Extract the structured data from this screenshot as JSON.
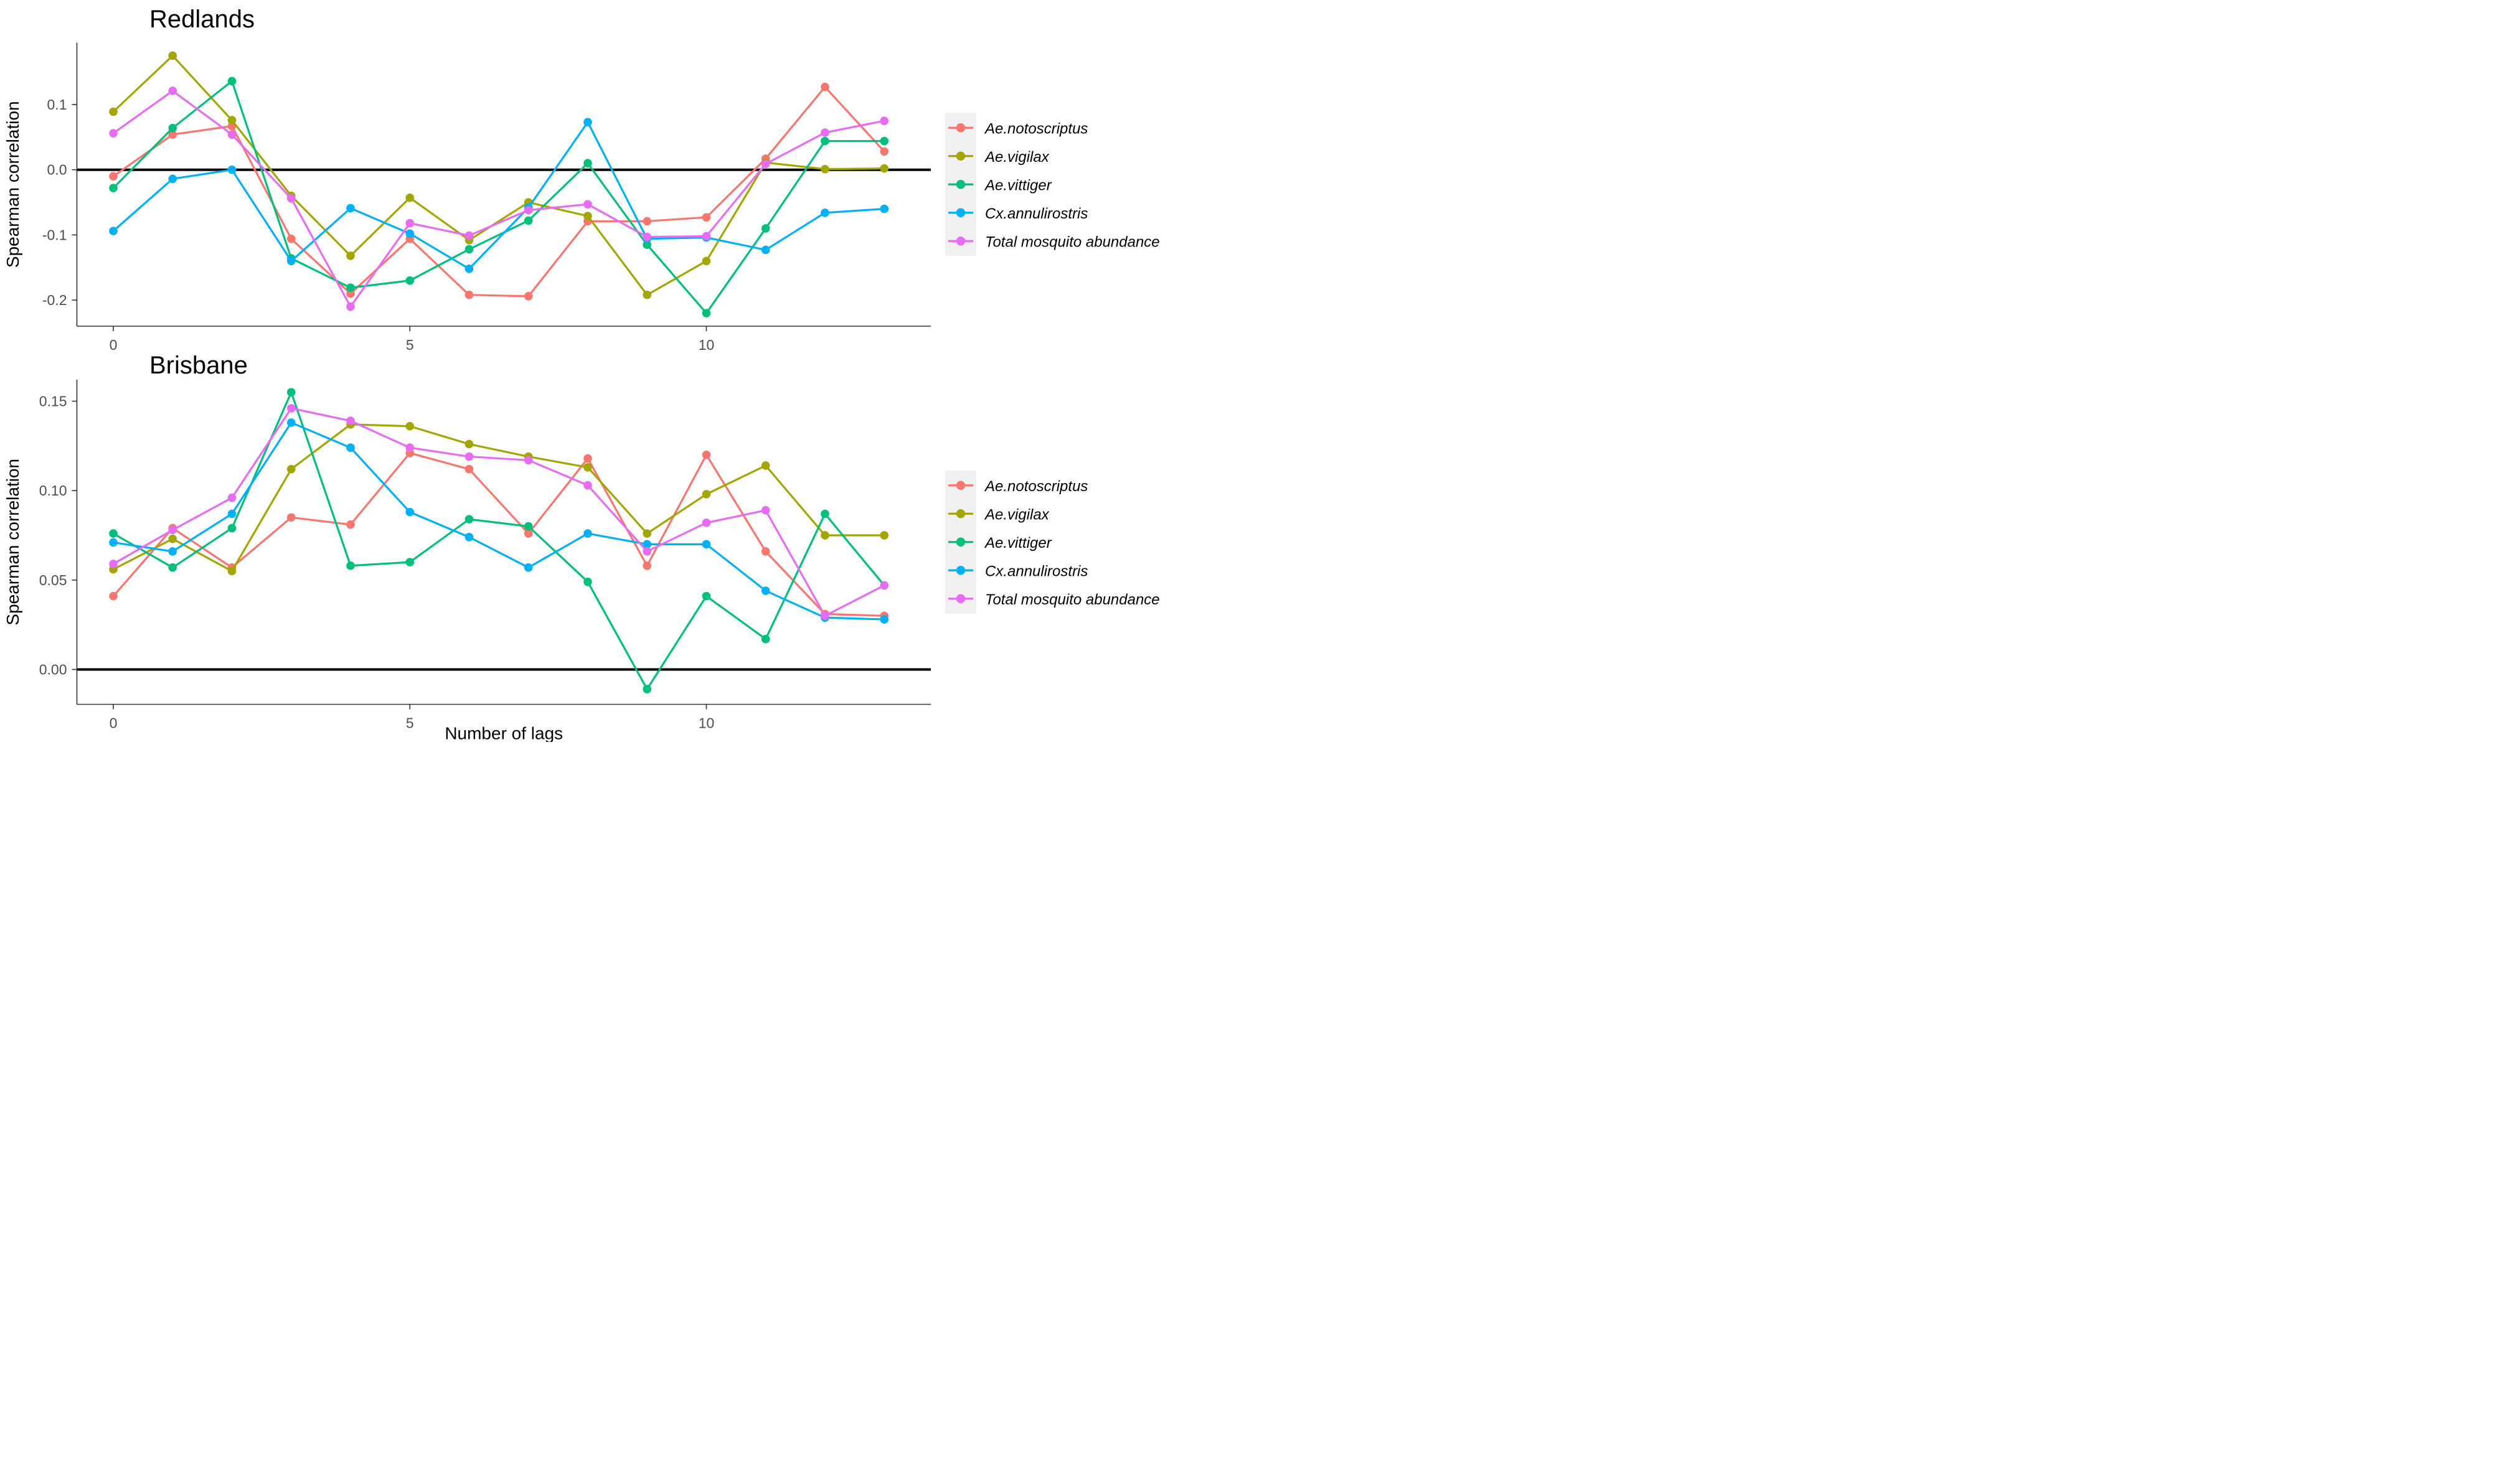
{
  "figure": {
    "ylabel": "Spearman correlation",
    "xlabel": "Number of lags",
    "legend_labels": [
      "Ae.notoscriptus",
      "Ae.vigilax",
      "Ae.vittiger",
      "Cx.annulirostris",
      "Total mosquito abundance"
    ],
    "series_colors": {
      "Ae.notoscriptus": "#F8766D",
      "Ae.vigilax": "#A3A500",
      "Ae.vittiger": "#00BF7D",
      "Cx.annulirostris": "#00B0F6",
      "Total mosquito abundance": "#E76BF3"
    },
    "axis_text_color": "#4d4d4d",
    "axis_line_color": "#333333",
    "zero_line_color": "#000000",
    "legend_key_fill": "#F0F0F0"
  },
  "chart_data": [
    {
      "type": "line",
      "title": "Redlands",
      "xlabel": "",
      "ylabel": "Spearman correlation",
      "x": [
        0,
        1,
        2,
        3,
        4,
        5,
        6,
        7,
        8,
        9,
        10,
        11,
        12,
        13
      ],
      "xticks": [
        0,
        5,
        10
      ],
      "xtick_labels": [
        "0",
        "5",
        "10"
      ],
      "yticks": [
        0.1,
        0.0,
        -0.1,
        -0.2
      ],
      "ytick_labels": [
        "0.1",
        "0.0",
        "-0.1",
        "-0.2"
      ],
      "ylim": [
        -0.24,
        0.195
      ],
      "hline": 0,
      "grid": "off",
      "legend_position": "right",
      "series": [
        {
          "name": "Ae.notoscriptus",
          "color": "#F8766D",
          "values": [
            -0.01,
            0.054,
            0.067,
            -0.106,
            -0.19,
            -0.106,
            -0.192,
            -0.194,
            -0.079,
            -0.079,
            -0.073,
            0.017,
            0.127,
            0.028
          ]
        },
        {
          "name": "Ae.vigilax",
          "color": "#A3A500",
          "values": [
            0.089,
            0.175,
            0.076,
            -0.04,
            -0.132,
            -0.043,
            -0.108,
            -0.05,
            -0.071,
            -0.192,
            -0.14,
            0.011,
            0.001,
            0.002
          ]
        },
        {
          "name": "Ae.vittiger",
          "color": "#00BF7D",
          "values": [
            -0.028,
            0.064,
            0.136,
            -0.136,
            -0.181,
            -0.17,
            -0.122,
            -0.078,
            0.01,
            -0.115,
            -0.22,
            -0.09,
            0.044,
            0.044
          ]
        },
        {
          "name": "Cx.annulirostris",
          "color": "#00B0F6",
          "values": [
            -0.094,
            -0.014,
            0.0,
            -0.14,
            -0.059,
            -0.098,
            -0.152,
            -0.058,
            0.073,
            -0.106,
            -0.104,
            -0.123,
            -0.066,
            -0.06
          ]
        },
        {
          "name": "Total mosquito abundance",
          "color": "#E76BF3",
          "values": [
            0.056,
            0.121,
            0.054,
            -0.044,
            -0.21,
            -0.082,
            -0.101,
            -0.062,
            -0.053,
            -0.103,
            -0.102,
            0.009,
            0.057,
            0.075
          ]
        }
      ]
    },
    {
      "type": "line",
      "title": "Brisbane",
      "xlabel": "Number of lags",
      "ylabel": "Spearman correlation",
      "x": [
        0,
        1,
        2,
        3,
        4,
        5,
        6,
        7,
        8,
        9,
        10,
        11,
        12,
        13
      ],
      "xticks": [
        0,
        5,
        10
      ],
      "xtick_labels": [
        "0",
        "5",
        "10"
      ],
      "yticks": [
        0.15,
        0.1,
        0.05,
        0.0
      ],
      "ytick_labels": [
        "0.15",
        "0.10",
        "0.05",
        "0.00"
      ],
      "ylim": [
        -0.0195,
        0.162
      ],
      "hline": 0,
      "grid": "off",
      "legend_position": "right",
      "series": [
        {
          "name": "Ae.notoscriptus",
          "color": "#F8766D",
          "values": [
            0.041,
            0.079,
            0.057,
            0.085,
            0.081,
            0.121,
            0.112,
            0.076,
            0.118,
            0.058,
            0.12,
            0.066,
            0.031,
            0.03
          ]
        },
        {
          "name": "Ae.vigilax",
          "color": "#A3A500",
          "values": [
            0.056,
            0.073,
            0.055,
            0.112,
            0.137,
            0.136,
            0.126,
            0.119,
            0.113,
            0.076,
            0.098,
            0.114,
            0.075,
            0.075
          ]
        },
        {
          "name": "Ae.vittiger",
          "color": "#00BF7D",
          "values": [
            0.076,
            0.057,
            0.079,
            0.155,
            0.058,
            0.06,
            0.084,
            0.08,
            0.049,
            -0.011,
            0.041,
            0.017,
            0.087,
            0.047
          ]
        },
        {
          "name": "Cx.annulirostris",
          "color": "#00B0F6",
          "values": [
            0.071,
            0.066,
            0.087,
            0.138,
            0.124,
            0.088,
            0.074,
            0.057,
            0.076,
            0.07,
            0.07,
            0.044,
            0.029,
            0.028
          ]
        },
        {
          "name": "Total mosquito abundance",
          "color": "#E76BF3",
          "values": [
            0.059,
            0.078,
            0.096,
            0.146,
            0.139,
            0.124,
            0.119,
            0.117,
            0.103,
            0.066,
            0.082,
            0.089,
            0.03,
            0.047
          ]
        }
      ]
    }
  ]
}
